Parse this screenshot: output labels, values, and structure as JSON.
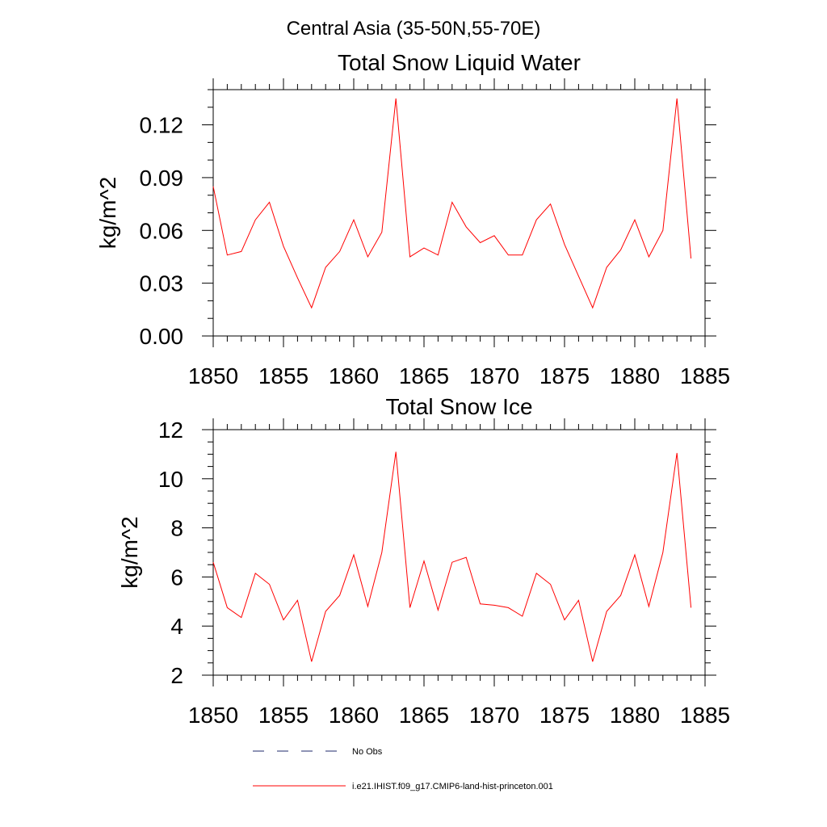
{
  "figure_title": "Central Asia (35-50N,55-70E)",
  "legend": {
    "entries": [
      {
        "label": "No Obs",
        "style": "dashed",
        "color": "#1f2a6b"
      },
      {
        "label": "i.e21.IHIST.f09_g17.CMIP6-land-hist-princeton.001",
        "style": "solid",
        "color": "#ff0000"
      }
    ]
  },
  "chart_data": [
    {
      "type": "line",
      "title": "Total Snow Liquid Water",
      "xlabel": "",
      "ylabel": "kg/m^2",
      "xlim": [
        1850,
        1885
      ],
      "ylim": [
        0.0,
        0.14
      ],
      "xticks": [
        1850,
        1855,
        1860,
        1865,
        1870,
        1875,
        1880,
        1885
      ],
      "yticks": [
        0.0,
        0.03,
        0.06,
        0.09,
        0.12
      ],
      "yticklabels": [
        "0.00",
        "0.03",
        "0.06",
        "0.09",
        "0.12"
      ],
      "x_minor_step": 1,
      "y_minor_step": 0.01,
      "grid": false,
      "series": [
        {
          "color": "#ff0000",
          "x": [
            1850,
            1851,
            1852,
            1853,
            1854,
            1855,
            1856,
            1857,
            1858,
            1859,
            1860,
            1861,
            1862,
            1863,
            1864,
            1865,
            1866,
            1867,
            1868,
            1869,
            1870,
            1871,
            1872,
            1873,
            1874,
            1875,
            1876,
            1877,
            1878,
            1879,
            1880,
            1881,
            1882,
            1883,
            1884
          ],
          "y": [
            0.085,
            0.046,
            0.048,
            0.066,
            0.076,
            0.051,
            0.033,
            0.016,
            0.039,
            0.048,
            0.066,
            0.045,
            0.059,
            0.135,
            0.045,
            0.05,
            0.046,
            0.076,
            0.062,
            0.053,
            0.057,
            0.046,
            0.046,
            0.066,
            0.075,
            0.052,
            0.034,
            0.016,
            0.039,
            0.049,
            0.066,
            0.045,
            0.06,
            0.135,
            0.044
          ]
        }
      ]
    },
    {
      "type": "line",
      "title": "Total Snow Ice",
      "xlabel": "",
      "ylabel": "kg/m^2",
      "xlim": [
        1850,
        1885
      ],
      "ylim": [
        2,
        12
      ],
      "xticks": [
        1850,
        1855,
        1860,
        1865,
        1870,
        1875,
        1880,
        1885
      ],
      "yticks": [
        2,
        4,
        6,
        8,
        10,
        12
      ],
      "yticklabels": [
        "2",
        "4",
        "6",
        "8",
        "10",
        "12"
      ],
      "x_minor_step": 1,
      "y_minor_step": 0.5,
      "grid": false,
      "series": [
        {
          "color": "#ff0000",
          "x": [
            1850,
            1851,
            1852,
            1853,
            1854,
            1855,
            1856,
            1857,
            1858,
            1859,
            1860,
            1861,
            1862,
            1863,
            1864,
            1865,
            1866,
            1867,
            1868,
            1869,
            1870,
            1871,
            1872,
            1873,
            1874,
            1875,
            1876,
            1877,
            1878,
            1879,
            1880,
            1881,
            1882,
            1883,
            1884
          ],
          "y": [
            6.6,
            4.75,
            4.35,
            6.15,
            5.7,
            4.25,
            5.05,
            2.55,
            4.6,
            5.25,
            6.9,
            4.8,
            7.0,
            11.1,
            4.75,
            6.65,
            4.65,
            6.6,
            6.8,
            4.9,
            4.85,
            4.75,
            4.4,
            6.15,
            5.7,
            4.25,
            5.05,
            2.55,
            4.6,
            5.25,
            6.9,
            4.8,
            7.0,
            11.05,
            4.75
          ]
        }
      ]
    }
  ]
}
